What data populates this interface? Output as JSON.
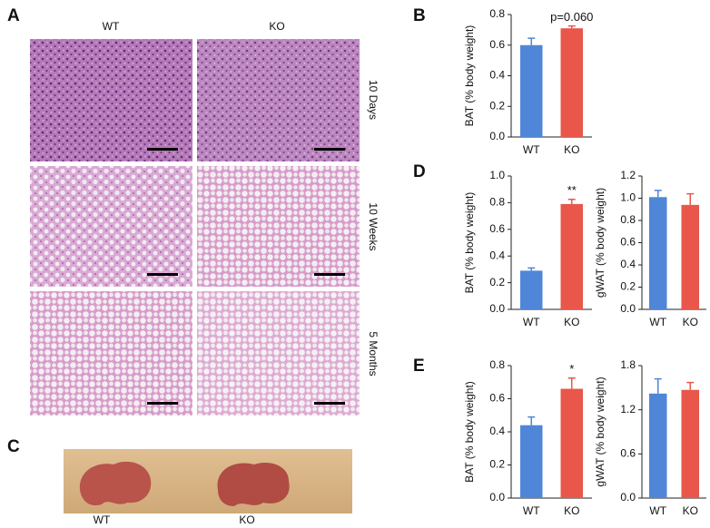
{
  "panels": {
    "A": {
      "label": "A",
      "columns": [
        "WT",
        "KO"
      ],
      "rows": [
        "10 Days",
        "10 Weeks",
        "5 Months"
      ]
    },
    "B": {
      "label": "B"
    },
    "C": {
      "label": "C",
      "samples": [
        "WT",
        "KO"
      ]
    },
    "D": {
      "label": "D"
    },
    "E": {
      "label": "E"
    }
  },
  "chart_data": [
    {
      "type": "bar",
      "ylabel": "BAT (% body weight)",
      "categories": [
        "WT",
        "KO"
      ],
      "values": [
        0.6,
        0.71
      ],
      "errors": [
        0.045,
        0.015
      ],
      "colors": [
        "#4f86d8",
        "#e8574a"
      ],
      "ylim": [
        0,
        0.8
      ],
      "yticks": [
        {
          "value": 0,
          "label": "0.0"
        },
        0.2,
        0.4,
        0.6,
        0.8
      ],
      "annotations": [
        {
          "text": "p=0.060",
          "category": "KO"
        }
      ]
    },
    {
      "type": "bar",
      "ylabel": "BAT (% body weight)",
      "categories": [
        "WT",
        "KO"
      ],
      "values": [
        0.29,
        0.79
      ],
      "errors": [
        0.02,
        0.035
      ],
      "colors": [
        "#4f86d8",
        "#e8574a"
      ],
      "ylim": [
        0,
        1.0
      ],
      "yticks": [
        {
          "value": 0,
          "label": "0.0"
        },
        0.2,
        0.4,
        0.6,
        0.8,
        {
          "value": 1,
          "label": "1.0"
        }
      ],
      "annotations": [
        {
          "text": "**",
          "category": "KO"
        }
      ]
    },
    {
      "type": "bar",
      "ylabel": "gWAT (% body weight)",
      "categories": [
        "WT",
        "KO"
      ],
      "values": [
        1.01,
        0.94
      ],
      "errors": [
        0.06,
        0.1
      ],
      "colors": [
        "#4f86d8",
        "#e8574a"
      ],
      "ylim": [
        0,
        1.2
      ],
      "yticks": [
        {
          "value": 0,
          "label": "0.0"
        },
        0.2,
        0.4,
        0.6,
        0.8,
        {
          "value": 1,
          "label": "1.0"
        },
        1.2
      ]
    },
    {
      "type": "bar",
      "ylabel": "BAT (% body weight)",
      "categories": [
        "WT",
        "KO"
      ],
      "values": [
        0.44,
        0.66
      ],
      "errors": [
        0.05,
        0.065
      ],
      "colors": [
        "#4f86d8",
        "#e8574a"
      ],
      "ylim": [
        0,
        0.8
      ],
      "yticks": [
        {
          "value": 0,
          "label": "0.0"
        },
        0.2,
        0.4,
        0.6,
        0.8
      ],
      "annotations": [
        {
          "text": "*",
          "category": "KO"
        }
      ]
    },
    {
      "type": "bar",
      "ylabel": "gWAT (% body weight)",
      "categories": [
        "WT",
        "KO"
      ],
      "values": [
        1.42,
        1.47
      ],
      "errors": [
        0.2,
        0.1
      ],
      "colors": [
        "#4f86d8",
        "#e8574a"
      ],
      "ylim": [
        0,
        1.8
      ],
      "yticks": [
        {
          "value": 0,
          "label": "0.0"
        },
        0.6,
        1.2,
        1.8
      ]
    }
  ]
}
